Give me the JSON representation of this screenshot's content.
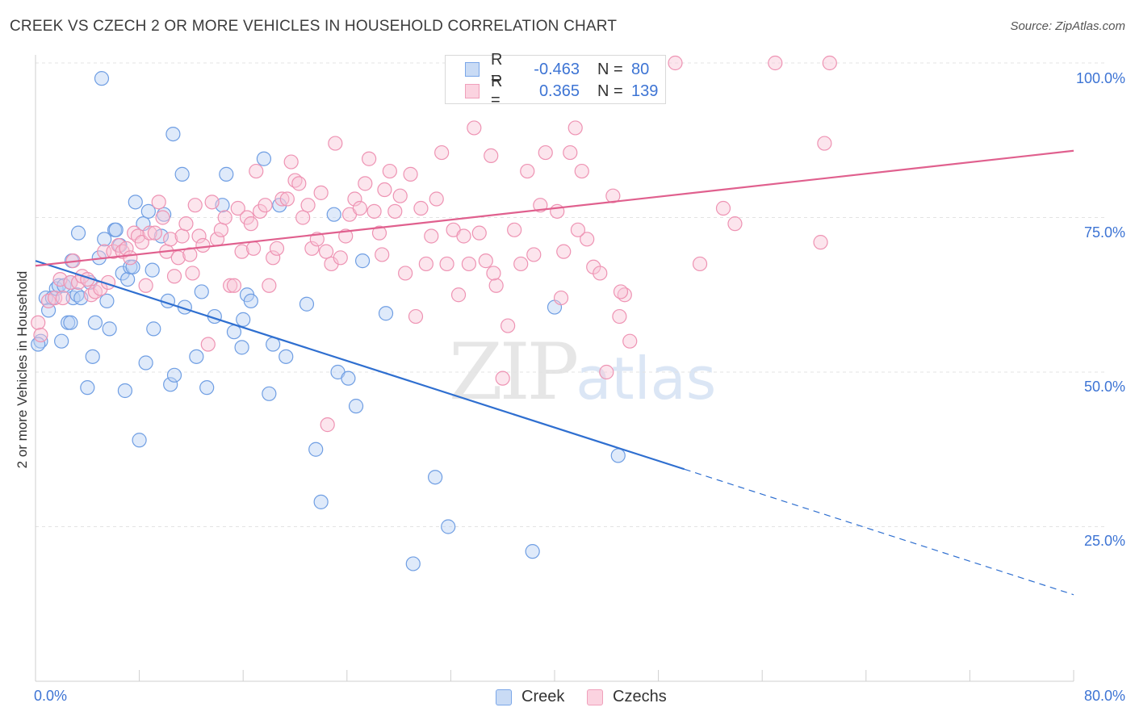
{
  "header": {
    "title": "CREEK VS CZECH 2 OR MORE VEHICLES IN HOUSEHOLD CORRELATION CHART",
    "source": "Source: ZipAtlas.com"
  },
  "watermark": {
    "zip": "ZIP",
    "atlas": "atlas"
  },
  "stats_legend": [
    {
      "r_label": "R =",
      "r_value": "-0.463",
      "n_label": "N =",
      "n_value": "80",
      "color": "#7aa6e8"
    },
    {
      "r_label": "R =",
      "r_value": "0.365",
      "n_label": "N =",
      "n_value": "139",
      "color": "#f0a0bb"
    }
  ],
  "chart_data": {
    "type": "scatter",
    "title": "CREEK VS CZECH 2 OR MORE VEHICLES IN HOUSEHOLD CORRELATION CHART",
    "xlabel": "",
    "ylabel": "2 or more Vehicles in Household",
    "xlim": [
      0,
      80
    ],
    "ylim": [
      0,
      100
    ],
    "x_tick_labels": [
      "0.0%",
      "80.0%"
    ],
    "y_ticks": [
      25,
      50,
      75,
      100
    ],
    "y_tick_labels": [
      "25.0%",
      "50.0%",
      "75.0%",
      "100.0%"
    ],
    "grid": "horizontal dashed",
    "legend_position": "bottom",
    "series": [
      {
        "name": "Creek",
        "color": "#7aa6e8",
        "trend_color": "#2f6fd0",
        "trend": {
          "x0": 0,
          "y0": 68.0,
          "x1": 50.0,
          "y1": 34.3,
          "dashed_to_x": 80,
          "dashed_to_y": 14.0
        },
        "points": [
          [
            0.4,
            55.0
          ],
          [
            0.8,
            62.0
          ],
          [
            1.0,
            60.0
          ],
          [
            1.3,
            62.0
          ],
          [
            1.6,
            63.5
          ],
          [
            1.8,
            64.0
          ],
          [
            2.0,
            55.0
          ],
          [
            2.2,
            64.0
          ],
          [
            2.5,
            58.0
          ],
          [
            2.7,
            58.0
          ],
          [
            2.9,
            62.0
          ],
          [
            2.7,
            64.5
          ],
          [
            2.8,
            68.0
          ],
          [
            3.2,
            62.5
          ],
          [
            3.3,
            72.5
          ],
          [
            3.5,
            62.0
          ],
          [
            4.0,
            47.5
          ],
          [
            4.2,
            64.5
          ],
          [
            4.4,
            52.5
          ],
          [
            4.6,
            58.0
          ],
          [
            4.9,
            68.5
          ],
          [
            5.1,
            97.5
          ],
          [
            5.3,
            71.5
          ],
          [
            5.5,
            61.5
          ],
          [
            5.7,
            57.0
          ],
          [
            6.1,
            73.0
          ],
          [
            6.2,
            73.0
          ],
          [
            6.5,
            70.5
          ],
          [
            6.7,
            66.0
          ],
          [
            6.9,
            47.0
          ],
          [
            7.1,
            65.0
          ],
          [
            7.3,
            67.0
          ],
          [
            7.5,
            67.0
          ],
          [
            7.7,
            77.5
          ],
          [
            8.0,
            39.0
          ],
          [
            8.3,
            74.0
          ],
          [
            8.5,
            51.5
          ],
          [
            8.7,
            76.0
          ],
          [
            9.0,
            66.5
          ],
          [
            9.1,
            57.0
          ],
          [
            9.7,
            72.0
          ],
          [
            9.9,
            75.5
          ],
          [
            10.2,
            61.5
          ],
          [
            10.4,
            48.0
          ],
          [
            10.6,
            88.5
          ],
          [
            10.7,
            49.5
          ],
          [
            11.3,
            82.0
          ],
          [
            11.5,
            60.5
          ],
          [
            12.4,
            52.5
          ],
          [
            12.8,
            63.0
          ],
          [
            13.2,
            47.5
          ],
          [
            13.8,
            59.0
          ],
          [
            14.4,
            77.0
          ],
          [
            14.7,
            82.0
          ],
          [
            15.3,
            56.5
          ],
          [
            15.9,
            54.0
          ],
          [
            16.0,
            58.5
          ],
          [
            16.3,
            62.5
          ],
          [
            16.6,
            61.5
          ],
          [
            17.6,
            84.5
          ],
          [
            18.0,
            46.5
          ],
          [
            18.3,
            54.5
          ],
          [
            18.8,
            77.0
          ],
          [
            19.3,
            52.5
          ],
          [
            20.9,
            61.0
          ],
          [
            21.6,
            37.5
          ],
          [
            22.0,
            29.0
          ],
          [
            23.0,
            75.5
          ],
          [
            23.3,
            50.0
          ],
          [
            24.1,
            49.0
          ],
          [
            24.7,
            44.5
          ],
          [
            25.2,
            68.0
          ],
          [
            27.0,
            59.5
          ],
          [
            29.1,
            19.0
          ],
          [
            30.8,
            33.0
          ],
          [
            31.8,
            25.0
          ],
          [
            38.3,
            21.0
          ],
          [
            40.0,
            60.5
          ],
          [
            44.9,
            36.5
          ],
          [
            0.2,
            54.5
          ]
        ]
      },
      {
        "name": "Czechs",
        "color": "#f0a0bb",
        "trend_color": "#e0608e",
        "trend": {
          "x0": 0,
          "y0": 67.2,
          "x1": 80,
          "y1": 85.8
        },
        "points": [
          [
            0.2,
            58.0
          ],
          [
            0.4,
            56.0
          ],
          [
            1.0,
            61.5
          ],
          [
            1.5,
            62.0
          ],
          [
            1.9,
            65.0
          ],
          [
            2.1,
            62.0
          ],
          [
            2.7,
            64.5
          ],
          [
            2.9,
            68.0
          ],
          [
            3.3,
            64.5
          ],
          [
            3.6,
            65.5
          ],
          [
            4.0,
            65.0
          ],
          [
            4.3,
            62.5
          ],
          [
            4.6,
            63.0
          ],
          [
            5.0,
            63.5
          ],
          [
            5.3,
            69.5
          ],
          [
            5.6,
            64.5
          ],
          [
            6.0,
            69.5
          ],
          [
            6.4,
            70.5
          ],
          [
            6.7,
            69.5
          ],
          [
            7.0,
            70.0
          ],
          [
            7.3,
            68.5
          ],
          [
            7.6,
            72.5
          ],
          [
            7.9,
            72.0
          ],
          [
            8.2,
            71.0
          ],
          [
            8.5,
            64.0
          ],
          [
            8.8,
            72.5
          ],
          [
            9.2,
            72.5
          ],
          [
            9.5,
            77.5
          ],
          [
            9.8,
            75.0
          ],
          [
            10.1,
            69.5
          ],
          [
            10.4,
            71.5
          ],
          [
            10.7,
            65.5
          ],
          [
            11.0,
            68.5
          ],
          [
            11.3,
            72.0
          ],
          [
            11.6,
            74.0
          ],
          [
            11.9,
            69.0
          ],
          [
            12.3,
            77.0
          ],
          [
            12.6,
            72.0
          ],
          [
            12.9,
            70.5
          ],
          [
            13.3,
            54.5
          ],
          [
            13.6,
            77.5
          ],
          [
            14.0,
            71.5
          ],
          [
            14.3,
            73.0
          ],
          [
            14.6,
            75.0
          ],
          [
            15.0,
            64.0
          ],
          [
            15.3,
            64.0
          ],
          [
            15.6,
            76.5
          ],
          [
            15.9,
            69.5
          ],
          [
            16.3,
            75.0
          ],
          [
            16.6,
            74.0
          ],
          [
            17.0,
            82.5
          ],
          [
            17.3,
            76.0
          ],
          [
            17.7,
            77.0
          ],
          [
            18.0,
            64.0
          ],
          [
            18.3,
            68.5
          ],
          [
            18.6,
            70.0
          ],
          [
            19.0,
            78.0
          ],
          [
            19.4,
            78.0
          ],
          [
            19.7,
            84.0
          ],
          [
            20.0,
            81.0
          ],
          [
            20.3,
            80.5
          ],
          [
            20.6,
            75.0
          ],
          [
            21.0,
            77.0
          ],
          [
            21.3,
            70.0
          ],
          [
            21.7,
            71.5
          ],
          [
            22.0,
            79.0
          ],
          [
            22.4,
            69.5
          ],
          [
            22.8,
            67.5
          ],
          [
            23.1,
            87.0
          ],
          [
            23.5,
            68.5
          ],
          [
            23.9,
            72.0
          ],
          [
            24.2,
            75.5
          ],
          [
            24.6,
            78.0
          ],
          [
            25.0,
            76.5
          ],
          [
            25.4,
            80.5
          ],
          [
            25.7,
            84.5
          ],
          [
            26.1,
            76.0
          ],
          [
            26.5,
            72.5
          ],
          [
            26.9,
            79.5
          ],
          [
            27.3,
            82.5
          ],
          [
            27.7,
            76.0
          ],
          [
            28.1,
            78.5
          ],
          [
            28.5,
            66.0
          ],
          [
            28.9,
            82.0
          ],
          [
            29.3,
            59.0
          ],
          [
            29.7,
            76.5
          ],
          [
            30.1,
            67.5
          ],
          [
            30.5,
            72.0
          ],
          [
            30.9,
            78.0
          ],
          [
            31.3,
            85.5
          ],
          [
            31.7,
            67.5
          ],
          [
            32.2,
            73.0
          ],
          [
            32.6,
            62.5
          ],
          [
            33.0,
            72.0
          ],
          [
            33.4,
            67.5
          ],
          [
            33.8,
            89.5
          ],
          [
            34.2,
            72.5
          ],
          [
            34.7,
            68.0
          ],
          [
            35.1,
            85.0
          ],
          [
            35.5,
            64.0
          ],
          [
            36.0,
            49.0
          ],
          [
            36.4,
            57.5
          ],
          [
            36.9,
            73.0
          ],
          [
            37.4,
            67.5
          ],
          [
            37.9,
            82.5
          ],
          [
            38.4,
            69.0
          ],
          [
            38.9,
            77.0
          ],
          [
            39.3,
            85.5
          ],
          [
            39.8,
            100.0
          ],
          [
            40.2,
            76.0
          ],
          [
            40.7,
            69.5
          ],
          [
            41.2,
            85.5
          ],
          [
            41.6,
            89.5
          ],
          [
            42.1,
            82.5
          ],
          [
            42.5,
            71.5
          ],
          [
            43.0,
            67.0
          ],
          [
            43.5,
            66.0
          ],
          [
            44.0,
            50.0
          ],
          [
            44.5,
            78.5
          ],
          [
            45.0,
            59.0
          ],
          [
            45.4,
            62.5
          ],
          [
            45.8,
            55.0
          ],
          [
            47.0,
            100.0
          ],
          [
            49.3,
            100.0
          ],
          [
            51.2,
            67.5
          ],
          [
            53.0,
            76.5
          ],
          [
            53.9,
            74.0
          ],
          [
            57.0,
            100.0
          ],
          [
            60.5,
            71.0
          ],
          [
            61.2,
            100.0
          ],
          [
            60.8,
            87.0
          ],
          [
            35.3,
            66.0
          ],
          [
            45.1,
            63.0
          ],
          [
            41.8,
            73.0
          ],
          [
            22.5,
            41.5
          ],
          [
            40.5,
            62.0
          ],
          [
            12.1,
            66.0
          ],
          [
            16.8,
            70.0
          ],
          [
            26.7,
            69.0
          ]
        ]
      }
    ]
  }
}
